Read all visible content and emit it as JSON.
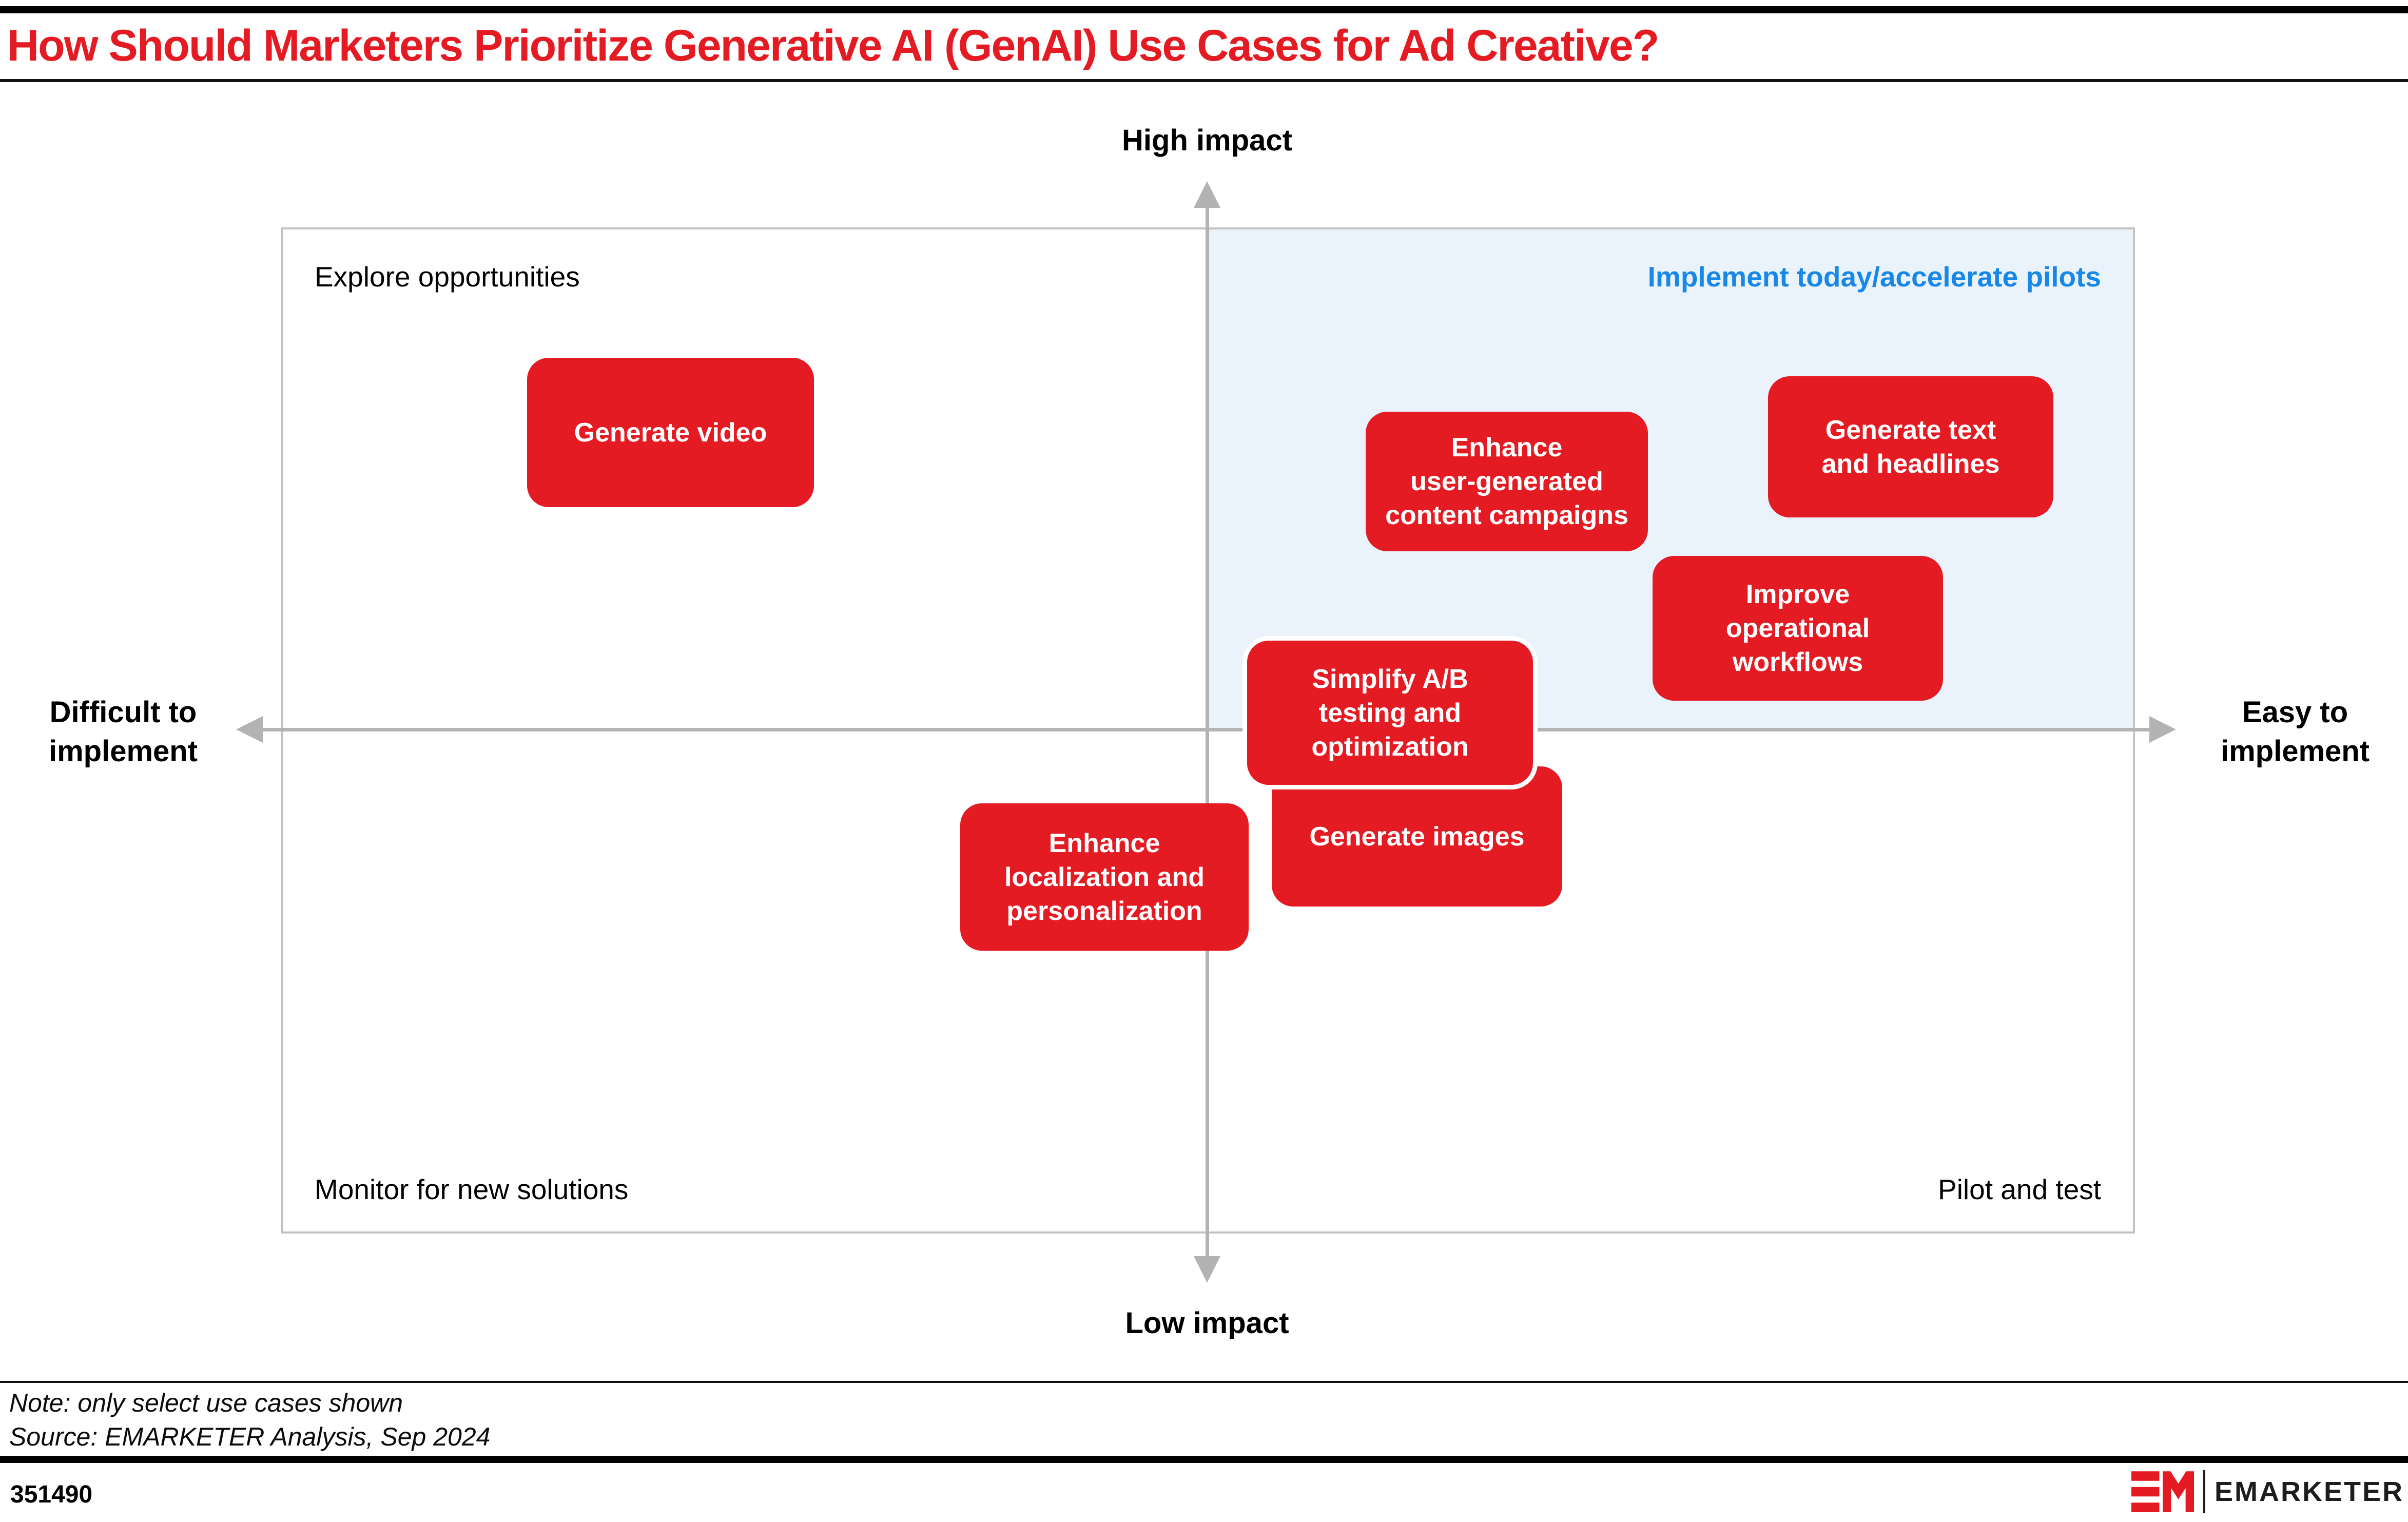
{
  "title": "How Should Marketers Prioritize Generative AI (GenAI) Use Cases for Ad Creative?",
  "colors": {
    "accent_red": "#e41b23",
    "accent_blue": "#1787e8",
    "highlight_quadrant_bg": "#eaf2fc",
    "axis_gray": "#b3b3b3"
  },
  "axes": {
    "top_label": "High impact",
    "bottom_label": "Low impact",
    "left_label_lines": [
      "Difficult to",
      "implement"
    ],
    "right_label_lines": [
      "Easy to",
      "implement"
    ]
  },
  "quadrants": {
    "top_left": "Explore opportunities",
    "top_right": "Implement today/accelerate pilots",
    "bottom_left": "Monitor for new solutions",
    "bottom_right": "Pilot and test"
  },
  "use_cases": [
    {
      "name": "generate-video",
      "label": "Generate video",
      "label_lines": [
        "Generate video"
      ]
    },
    {
      "name": "enhance-ugc-campaigns",
      "label": "Enhance user-generated content campaigns",
      "label_lines": [
        "Enhance",
        "user-generated",
        "content campaigns"
      ]
    },
    {
      "name": "generate-text-headlines",
      "label": "Generate text and headlines",
      "label_lines": [
        "Generate text",
        "and headlines"
      ]
    },
    {
      "name": "improve-operational-workflows",
      "label": "Improve operational workflows",
      "label_lines": [
        "Improve",
        "operational",
        "workflows"
      ]
    },
    {
      "name": "simplify-ab-testing",
      "label": "Simplify A/B testing and optimization",
      "label_lines": [
        "Simplify A/B",
        "testing and",
        "optimization"
      ]
    },
    {
      "name": "generate-images",
      "label": "Generate images",
      "label_lines": [
        "Generate images"
      ]
    },
    {
      "name": "enhance-localization-personalization",
      "label": "Enhance localization and personalization",
      "label_lines": [
        "Enhance",
        "localization and",
        "personalization"
      ]
    }
  ],
  "footnote": {
    "note": "Note: only select use cases shown",
    "source": "Source: EMARKETER Analysis, Sep 2024"
  },
  "footer": {
    "chart_id": "351490",
    "brand": "EMARKETER"
  },
  "chart_data": {
    "type": "scatter",
    "subtype": "quadrant-matrix",
    "title": "How Should Marketers Prioritize Generative AI (GenAI) Use Cases for Ad Creative?",
    "xlabel": "Ease of implementation (Difficult to implement → Easy to implement)",
    "ylabel": "Impact (Low impact → High impact)",
    "xlim": [
      -1,
      1
    ],
    "ylim": [
      -1,
      1
    ],
    "grid": false,
    "quadrant_labels": {
      "top_left": "Explore opportunities",
      "top_right": "Implement today/accelerate pilots",
      "bottom_left": "Monitor for new solutions",
      "bottom_right": "Pilot and test"
    },
    "highlighted_quadrant": "top_right",
    "points": [
      {
        "label": "Generate video",
        "ease": -0.58,
        "impact": 0.59
      },
      {
        "label": "Enhance user-generated content campaigns",
        "ease": 0.32,
        "impact": 0.49
      },
      {
        "label": "Generate text and headlines",
        "ease": 0.76,
        "impact": 0.56
      },
      {
        "label": "Improve operational workflows",
        "ease": 0.64,
        "impact": 0.2
      },
      {
        "label": "Simplify A/B testing and optimization",
        "ease": 0.2,
        "impact": 0.04
      },
      {
        "label": "Generate images",
        "ease": 0.23,
        "impact": -0.21
      },
      {
        "label": "Enhance localization and personalization",
        "ease": -0.11,
        "impact": -0.29
      }
    ]
  }
}
